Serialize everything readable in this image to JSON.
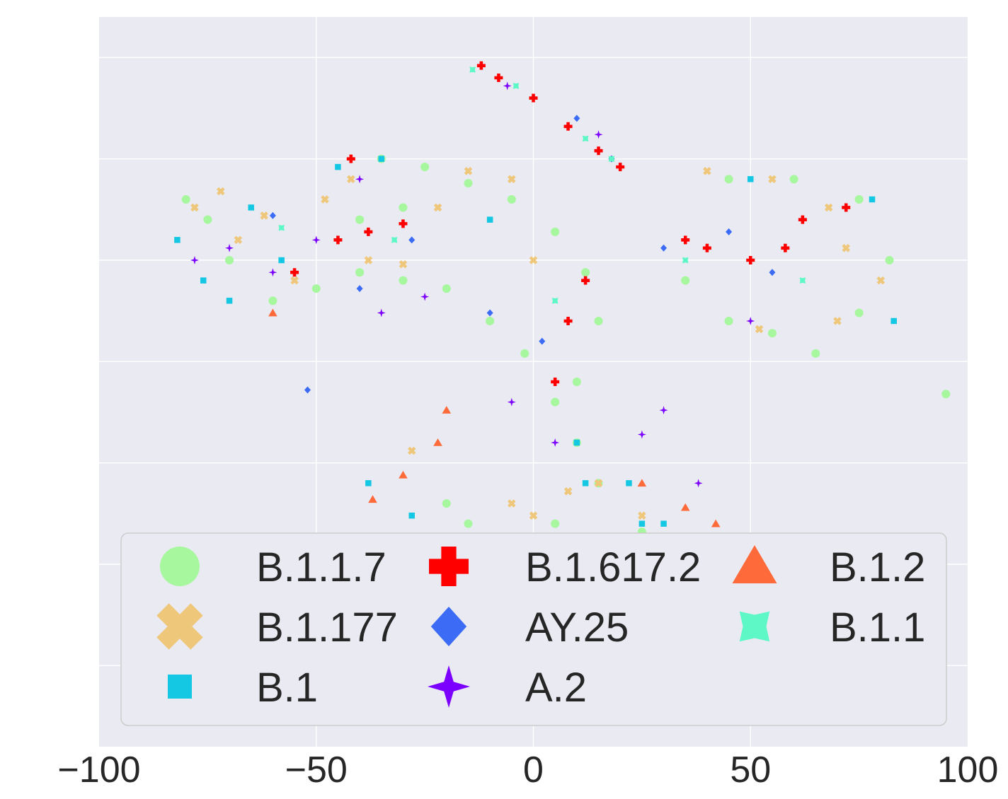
{
  "chart_data": {
    "type": "scatter",
    "title": "",
    "xlabel": "",
    "ylabel": "",
    "xlim": [
      -100,
      100
    ],
    "ylim": [
      -95,
      85
    ],
    "x_ticks": [
      -100,
      -50,
      0,
      50,
      100
    ],
    "x_tick_labels": [
      "−100",
      "−50",
      "0",
      "50",
      "100"
    ],
    "y_grid": [
      -75,
      -50,
      -25,
      0,
      25,
      50,
      75
    ],
    "y_ticks_labeled": false,
    "grid": true,
    "legend": {
      "position": "lower-center",
      "columns": 3
    },
    "series": [
      {
        "name": "B.1.1.7",
        "marker": "circle",
        "color": "#a6f79e",
        "points": [
          [
            -80,
            40
          ],
          [
            -75,
            35
          ],
          [
            -70,
            25
          ],
          [
            -60,
            15
          ],
          [
            -50,
            18
          ],
          [
            -40,
            22
          ],
          [
            -30,
            20
          ],
          [
            -20,
            18
          ],
          [
            -10,
            10
          ],
          [
            -2,
            2
          ],
          [
            5,
            -10
          ],
          [
            10,
            -20
          ],
          [
            15,
            -30
          ],
          [
            5,
            -40
          ],
          [
            -15,
            -40
          ],
          [
            -20,
            -35
          ],
          [
            -35,
            50
          ],
          [
            -25,
            48
          ],
          [
            -15,
            44
          ],
          [
            -5,
            40
          ],
          [
            5,
            32
          ],
          [
            12,
            22
          ],
          [
            15,
            10
          ],
          [
            10,
            -5
          ],
          [
            25,
            -42
          ],
          [
            35,
            20
          ],
          [
            45,
            10
          ],
          [
            55,
            7
          ],
          [
            65,
            2
          ],
          [
            75,
            12
          ],
          [
            82,
            25
          ],
          [
            75,
            40
          ],
          [
            60,
            45
          ],
          [
            45,
            45
          ],
          [
            95,
            -8
          ],
          [
            -40,
            35
          ],
          [
            -30,
            38
          ]
        ]
      },
      {
        "name": "B.1.177",
        "marker": "x",
        "color": "#eec77a",
        "points": [
          [
            -78,
            38
          ],
          [
            -72,
            42
          ],
          [
            -68,
            30
          ],
          [
            -62,
            36
          ],
          [
            -55,
            20
          ],
          [
            -48,
            40
          ],
          [
            -42,
            45
          ],
          [
            -38,
            25
          ],
          [
            -30,
            24
          ],
          [
            -22,
            38
          ],
          [
            -15,
            47
          ],
          [
            -5,
            45
          ],
          [
            0,
            25
          ],
          [
            8,
            -32
          ],
          [
            15,
            -30
          ],
          [
            -5,
            -35
          ],
          [
            0,
            -38
          ],
          [
            -28,
            -22
          ],
          [
            25,
            -38
          ],
          [
            40,
            47
          ],
          [
            55,
            45
          ],
          [
            68,
            38
          ],
          [
            72,
            28
          ],
          [
            80,
            20
          ],
          [
            70,
            10
          ],
          [
            52,
            8
          ]
        ]
      },
      {
        "name": "B.1",
        "marker": "square",
        "color": "#14c7e2",
        "points": [
          [
            -82,
            30
          ],
          [
            -76,
            20
          ],
          [
            -70,
            15
          ],
          [
            -65,
            38
          ],
          [
            -58,
            25
          ],
          [
            -45,
            48
          ],
          [
            -35,
            50
          ],
          [
            -28,
            -38
          ],
          [
            -38,
            -30
          ],
          [
            -33,
            -50
          ],
          [
            -25,
            -52
          ],
          [
            10,
            -20
          ],
          [
            12,
            -30
          ],
          [
            22,
            -30
          ],
          [
            30,
            -40
          ],
          [
            38,
            -48
          ],
          [
            30,
            -58
          ],
          [
            20,
            -60
          ],
          [
            5,
            -62
          ],
          [
            -5,
            -63
          ],
          [
            25,
            -40
          ],
          [
            35,
            -46
          ],
          [
            42,
            -50
          ],
          [
            50,
            45
          ],
          [
            78,
            40
          ],
          [
            83,
            10
          ],
          [
            -10,
            35
          ]
        ]
      },
      {
        "name": "B.1.617.2",
        "marker": "plus",
        "color": "#ff0000",
        "points": [
          [
            -12,
            73
          ],
          [
            -8,
            70
          ],
          [
            0,
            65
          ],
          [
            8,
            58
          ],
          [
            15,
            52
          ],
          [
            20,
            48
          ],
          [
            -45,
            30
          ],
          [
            -38,
            32
          ],
          [
            -30,
            34
          ],
          [
            5,
            -5
          ],
          [
            8,
            10
          ],
          [
            12,
            20
          ],
          [
            40,
            28
          ],
          [
            50,
            25
          ],
          [
            58,
            28
          ],
          [
            62,
            35
          ],
          [
            -55,
            22
          ],
          [
            -42,
            50
          ],
          [
            72,
            38
          ],
          [
            35,
            30
          ]
        ]
      },
      {
        "name": "AY.25",
        "marker": "diamond",
        "color": "#3c6cf5",
        "points": [
          [
            -52,
            -7
          ],
          [
            -40,
            18
          ],
          [
            -28,
            30
          ],
          [
            -10,
            12
          ],
          [
            2,
            5
          ],
          [
            10,
            60
          ],
          [
            18,
            50
          ],
          [
            30,
            28
          ],
          [
            45,
            32
          ],
          [
            55,
            22
          ],
          [
            -60,
            36
          ],
          [
            14,
            -50
          ]
        ]
      },
      {
        "name": "A.2",
        "marker": "star4",
        "color": "#7b00ff",
        "points": [
          [
            -78,
            25
          ],
          [
            -70,
            28
          ],
          [
            -60,
            22
          ],
          [
            -50,
            30
          ],
          [
            -35,
            12
          ],
          [
            -25,
            16
          ],
          [
            -5,
            -10
          ],
          [
            5,
            -20
          ],
          [
            25,
            -18
          ],
          [
            38,
            -30
          ],
          [
            30,
            -12
          ],
          [
            -40,
            45
          ],
          [
            -6,
            68
          ],
          [
            15,
            56
          ],
          [
            50,
            10
          ]
        ]
      },
      {
        "name": "B.1.2",
        "marker": "triangle",
        "color": "#ff6a3a",
        "points": [
          [
            -20,
            -12
          ],
          [
            -22,
            -20
          ],
          [
            -30,
            -28
          ],
          [
            -37,
            -34
          ],
          [
            -36,
            -44
          ],
          [
            -28,
            -50
          ],
          [
            -22,
            -52
          ],
          [
            25,
            -30
          ],
          [
            35,
            -36
          ],
          [
            42,
            -40
          ],
          [
            40,
            -50
          ],
          [
            32,
            -56
          ],
          [
            -60,
            12
          ]
        ]
      },
      {
        "name": "B.1.1",
        "marker": "star4fat",
        "color": "#5ef7c6",
        "points": [
          [
            -14,
            72
          ],
          [
            -4,
            68
          ],
          [
            12,
            55
          ],
          [
            18,
            50
          ],
          [
            -32,
            30
          ],
          [
            5,
            15
          ],
          [
            35,
            25
          ],
          [
            62,
            20
          ],
          [
            -58,
            33
          ],
          [
            20,
            -44
          ]
        ]
      }
    ]
  }
}
